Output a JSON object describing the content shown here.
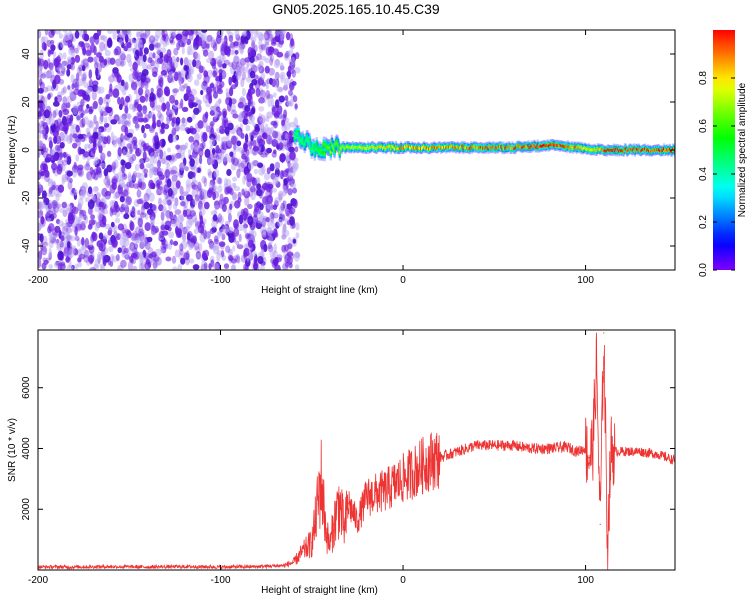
{
  "figure": {
    "title": "GN05.2025.165.10.45.C39"
  },
  "colors": {
    "snr_line": "#ee3333",
    "spectrogram_noise": "#6a1ee0",
    "spectrogram_track": "#e8213a",
    "axis": "#000000",
    "background": "#ffffff"
  },
  "chart_data": [
    {
      "type": "heatmap",
      "title": "GN05.2025.165.10.45.C39",
      "xlabel": "Height of straight line (km)",
      "ylabel": "Frequency (Hz)",
      "xlim": [
        -200,
        149
      ],
      "ylim": [
        -50,
        50
      ],
      "xticks": [
        -200,
        -100,
        0,
        100
      ],
      "yticks": [
        -40,
        -20,
        0,
        20,
        40
      ],
      "colorbar": {
        "label": "Normalized spectral amplitude",
        "range": [
          0,
          1
        ],
        "ticks": [
          "0.0",
          "0.2",
          "0.4",
          "0.6",
          "0.8"
        ],
        "colormap": "hsv-reversed (purple to red)",
        "position": "right"
      },
      "description_regions": {
        "noise_x_range": [
          -200,
          -60
        ],
        "noise_freq_range": [
          -50,
          50
        ],
        "noise_amplitude": 0.1,
        "signal_x_range": [
          -60,
          149
        ],
        "signal_center_freq_hz": 0,
        "signal_peak_amplitude": 1.0
      },
      "signal_track": [
        {
          "x": -60,
          "freq": 6,
          "amplitude": 0.4
        },
        {
          "x": -55,
          "freq": 4,
          "amplitude": 0.45
        },
        {
          "x": -50,
          "freq": 1,
          "amplitude": 0.5
        },
        {
          "x": -45,
          "freq": 0,
          "amplitude": 0.6
        },
        {
          "x": -40,
          "freq": 1,
          "amplitude": 0.7
        },
        {
          "x": -30,
          "freq": 1,
          "amplitude": 0.75
        },
        {
          "x": -20,
          "freq": 1,
          "amplitude": 0.8
        },
        {
          "x": -10,
          "freq": 1,
          "amplitude": 0.85
        },
        {
          "x": 0,
          "freq": 1,
          "amplitude": 0.9
        },
        {
          "x": 10,
          "freq": 1,
          "amplitude": 0.9
        },
        {
          "x": 20,
          "freq": 1,
          "amplitude": 0.9
        },
        {
          "x": 40,
          "freq": 1,
          "amplitude": 0.95
        },
        {
          "x": 60,
          "freq": 1,
          "amplitude": 0.95
        },
        {
          "x": 80,
          "freq": 2,
          "amplitude": 1.0
        },
        {
          "x": 95,
          "freq": 1,
          "amplitude": 0.9
        },
        {
          "x": 105,
          "freq": 0,
          "amplitude": 0.8
        },
        {
          "x": 110,
          "freq": 0,
          "amplitude": 1.0
        },
        {
          "x": 130,
          "freq": 0,
          "amplitude": 1.0
        },
        {
          "x": 149,
          "freq": 0,
          "amplitude": 1.0
        }
      ]
    },
    {
      "type": "line",
      "xlabel": "Height of straight line (km)",
      "ylabel": "SNR (10 * v/v)",
      "xlim": [
        -200,
        149
      ],
      "ylim": [
        0,
        7900
      ],
      "xticks": [
        -200,
        -100,
        0,
        100
      ],
      "yticks": [
        2000,
        4000,
        6000
      ],
      "grid": false,
      "series": [
        {
          "x": [
            -200,
            -180,
            -160,
            -140,
            -120,
            -100,
            -80,
            -65,
            -60,
            -55,
            -50,
            -48,
            -45,
            -42,
            -40,
            -38,
            -35,
            -32,
            -30,
            -25,
            -20,
            -15,
            -10,
            -5,
            0,
            5,
            10,
            15,
            20,
            25,
            30,
            40,
            50,
            60,
            70,
            80,
            90,
            95,
            100,
            102,
            104,
            106,
            108,
            110,
            112,
            114,
            116,
            120,
            130,
            140,
            149
          ],
          "y": [
            100,
            100,
            110,
            100,
            110,
            100,
            110,
            150,
            250,
            600,
            900,
            1600,
            3000,
            1200,
            800,
            1500,
            2200,
            1300,
            2200,
            1600,
            2400,
            2500,
            2600,
            2800,
            3000,
            3200,
            3400,
            3600,
            3700,
            3800,
            3900,
            4100,
            4100,
            4100,
            4000,
            4000,
            4050,
            3900,
            4000,
            3700,
            4100,
            6800,
            1500,
            7800,
            900,
            4000,
            3900,
            3900,
            3900,
            3800,
            3600
          ]
        }
      ]
    }
  ]
}
